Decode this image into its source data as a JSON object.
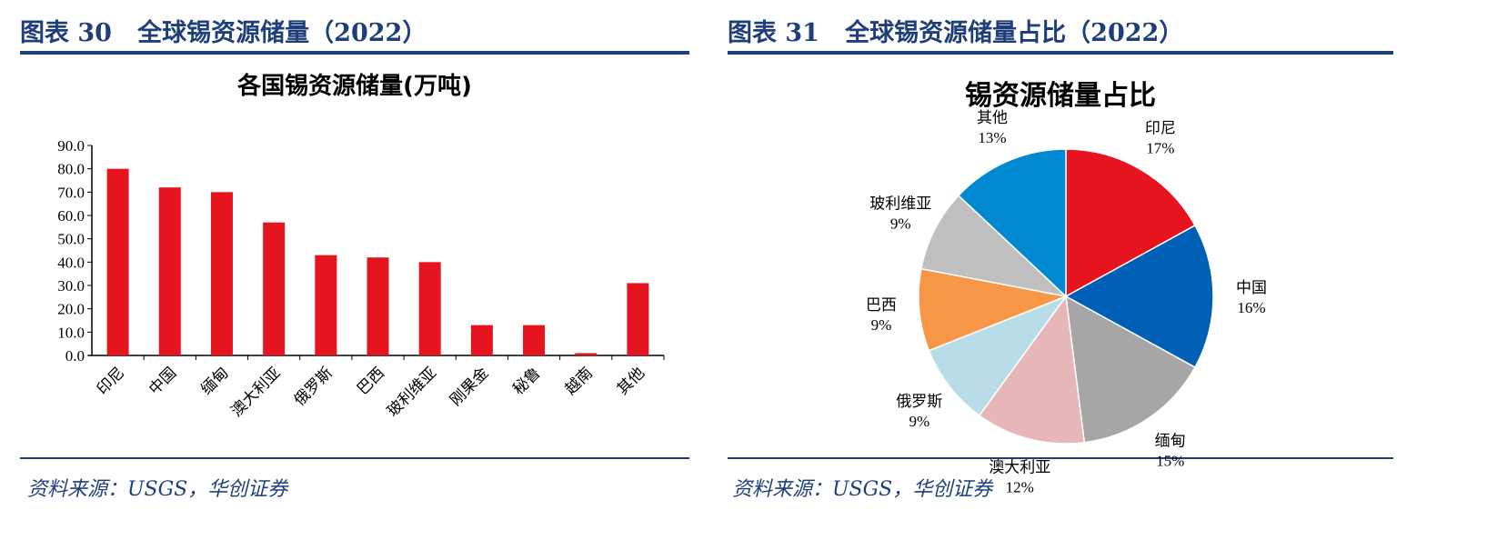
{
  "left_panel": {
    "title": "图表 30   全球锡资源储量（2022）",
    "source": "资料来源：USGS，华创证券"
  },
  "right_panel": {
    "title": "图表 31   全球锡资源储量占比（2022）",
    "source": "资料来源：USGS，华创证券"
  },
  "chart_data": [
    {
      "type": "bar",
      "title": "各国锡资源储量(万吨)",
      "categories": [
        "印尼",
        "中国",
        "缅甸",
        "澳大利亚",
        "俄罗斯",
        "巴西",
        "玻利维亚",
        "刚果金",
        "秘鲁",
        "越南",
        "其他"
      ],
      "values": [
        80,
        72,
        70,
        57,
        43,
        42,
        40,
        13,
        13,
        1,
        31
      ],
      "ylim": [
        0,
        90
      ],
      "yticks": [
        "0.0",
        "10.0",
        "20.0",
        "30.0",
        "40.0",
        "50.0",
        "60.0",
        "70.0",
        "80.0",
        "90.0"
      ],
      "color": "#E5141E",
      "grid": false
    },
    {
      "type": "pie",
      "title": "锡资源储量占比",
      "slices": [
        {
          "label": "印尼",
          "value": 17,
          "text": "17%",
          "color": "#E5141E"
        },
        {
          "label": "中国",
          "value": 16,
          "text": "16%",
          "color": "#0060B6"
        },
        {
          "label": "缅甸",
          "value": 15,
          "text": "15%",
          "color": "#A6A6A6"
        },
        {
          "label": "澳大利亚",
          "value": 12,
          "text": "12%",
          "color": "#E6B6B8"
        },
        {
          "label": "俄罗斯",
          "value": 9,
          "text": "9%",
          "color": "#B8DDE8"
        },
        {
          "label": "巴西",
          "value": 9,
          "text": "9%",
          "color": "#F79646"
        },
        {
          "label": "玻利维亚",
          "value": 9,
          "text": "9%",
          "color": "#BFBFBF"
        },
        {
          "label": "其他",
          "value": 13,
          "text": "13%",
          "color": "#0088D1"
        }
      ]
    }
  ]
}
